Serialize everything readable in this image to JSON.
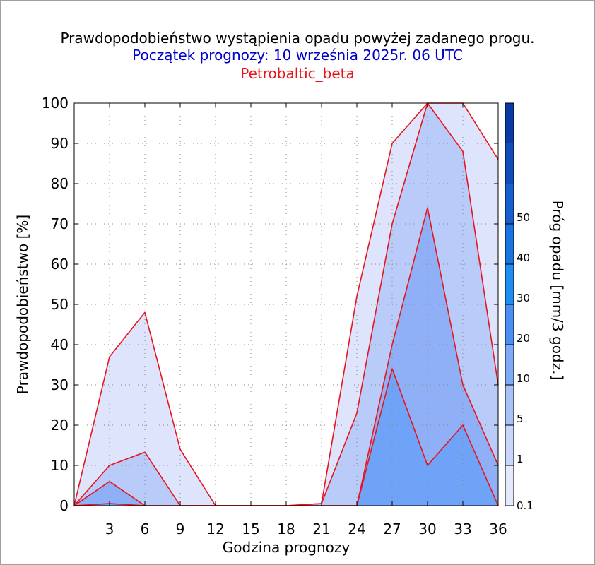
{
  "header": {
    "title": "Prawdopodobieństwo wystąpienia opadu powyżej zadanego progu.",
    "subtitle": "Początek prognozy: 10 września 2025r. 06 UTC",
    "model": "Petrobaltic_beta"
  },
  "chart_data": {
    "type": "area",
    "title": "Prawdopodobieństwo wystąpienia opadu powyżej zadanego progu.",
    "subtitle": "Początek prognozy: 10 września 2025r. 06 UTC",
    "model": "Petrobaltic_beta",
    "xlabel": "Godzina prognozy",
    "ylabel": "Prawdopodobieństwo [%]",
    "colorbar_label": "Próg opadu [mm/3 godz.]",
    "xlim": [
      0,
      36
    ],
    "ylim": [
      0,
      100
    ],
    "x_ticks": [
      3,
      6,
      9,
      12,
      15,
      18,
      21,
      24,
      27,
      30,
      33,
      36
    ],
    "y_ticks": [
      0,
      10,
      20,
      30,
      40,
      50,
      60,
      70,
      80,
      90,
      100
    ],
    "grid": true,
    "x": [
      0,
      3,
      6,
      9,
      12,
      15,
      18,
      21,
      24,
      27,
      30,
      33,
      36
    ],
    "series": [
      {
        "name": "0.1",
        "color": "#dde4fb",
        "values": [
          0,
          37,
          48,
          14,
          0,
          0,
          0,
          0.5,
          52,
          90,
          100,
          100,
          86
        ]
      },
      {
        "name": "1",
        "color": "#b9ccf9",
        "values": [
          0,
          10,
          13.3,
          0,
          0,
          0,
          0,
          0.5,
          23,
          70,
          100,
          88,
          30
        ]
      },
      {
        "name": "5",
        "color": "#8fb0f6",
        "values": [
          0,
          6,
          0,
          0,
          0,
          0,
          0,
          0,
          0,
          40,
          74,
          30,
          10
        ]
      },
      {
        "name": "10",
        "color": "#6ea3f7",
        "values": [
          0,
          0.5,
          0,
          0,
          0,
          0,
          0,
          0,
          0,
          34,
          10,
          20,
          0
        ]
      }
    ],
    "colorbar": {
      "tick_labels": [
        "0.1",
        "1",
        "5",
        "10",
        "20",
        "30",
        "40",
        "50"
      ],
      "colors": [
        "#e4eafc",
        "#c8d6fa",
        "#a8c2f8",
        "#7eaaf6",
        "#4a90f3",
        "#1f8cf0",
        "#1a74e0",
        "#1560cc",
        "#0f4cb8",
        "#0a3aa4"
      ]
    },
    "line_color": "#e8141c"
  }
}
